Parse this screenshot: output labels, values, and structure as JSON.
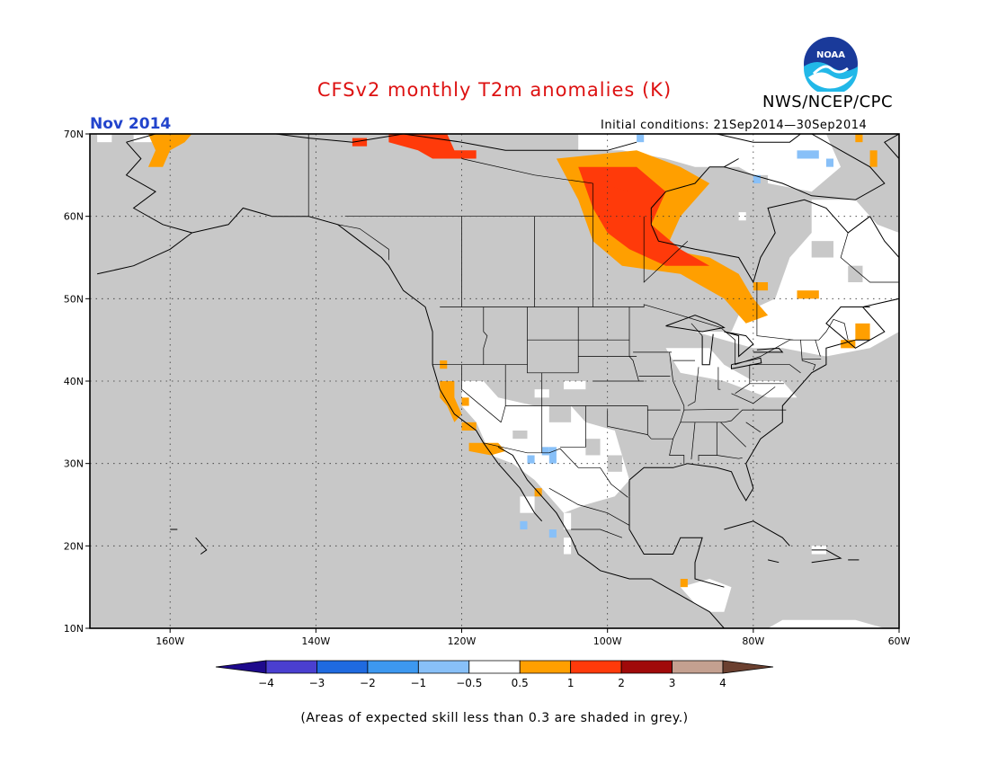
{
  "title": "CFSv2 monthly T2m anomalies (K)",
  "agency": "NWS/NCEP/CPC",
  "logo_text": "NOAA",
  "month_label": "Nov 2014",
  "initial_conditions": "Initial conditions: 21Sep2014—30Sep2014",
  "footnote": "(Areas of expected skill less than 0.3 are shaded in grey.)",
  "colors": {
    "title": "#dd1111",
    "month": "#2244cc",
    "grey_mask": "#c8c8c8",
    "neutral": "#ffffff"
  },
  "map": {
    "lon_range": [
      -171,
      -60
    ],
    "lat_range": [
      10,
      70
    ],
    "lat_labels": [
      "70N",
      "60N",
      "50N",
      "40N",
      "30N",
      "20N",
      "10N"
    ],
    "lon_labels": [
      "160W",
      "140W",
      "120W",
      "100W",
      "80W",
      "60W"
    ]
  },
  "legend": {
    "ticks": [
      "−4",
      "−3",
      "−2",
      "−1",
      "−0.5",
      "0.5",
      "1",
      "2",
      "3",
      "4"
    ],
    "bins": [
      {
        "color": "#1e0a8c"
      },
      {
        "color": "#4a3fd0"
      },
      {
        "color": "#1f6ae0"
      },
      {
        "color": "#3d98f0"
      },
      {
        "color": "#88c0f8"
      },
      {
        "color": "#ffffff"
      },
      {
        "color": "#ff9f00"
      },
      {
        "color": "#ff3a0a"
      },
      {
        "color": "#a00a0a"
      },
      {
        "color": "#c4a090"
      },
      {
        "color": "#6b4030"
      }
    ]
  },
  "anomaly_regions": [
    {
      "id": "northeast-canada-white",
      "category": "-0.5 to 0.5",
      "lon": [
        -88,
        -60
      ],
      "lat": [
        43,
        62
      ]
    },
    {
      "id": "arctic-islands-white",
      "category": "-0.5 to 0.5",
      "lon": [
        -105,
        -70
      ],
      "lat": [
        62,
        70
      ]
    },
    {
      "id": "desert-southwest-white",
      "category": "-0.5 to 0.5",
      "lon": [
        -120,
        -97
      ],
      "lat": [
        24,
        37
      ]
    },
    {
      "id": "hudson-bay-west-red",
      "category": "1 to 2",
      "lon": [
        -105,
        -92
      ],
      "lat": [
        52,
        65
      ]
    },
    {
      "id": "hudson-bay-west-orange",
      "category": "0.5 to 1",
      "lon": [
        -107,
        -80
      ],
      "lat": [
        48,
        67
      ]
    },
    {
      "id": "beaufort-sea-red",
      "category": "1 to 2",
      "lon": [
        -132,
        -118
      ],
      "lat": [
        67,
        70
      ]
    },
    {
      "id": "california-orange",
      "category": "0.5 to 1",
      "lon": [
        -124,
        -115
      ],
      "lat": [
        32,
        41
      ]
    },
    {
      "id": "northwest-mexico-blue",
      "category": "-1 to -0.5",
      "lon": [
        -112,
        -106
      ],
      "lat": [
        25,
        32
      ]
    }
  ]
}
